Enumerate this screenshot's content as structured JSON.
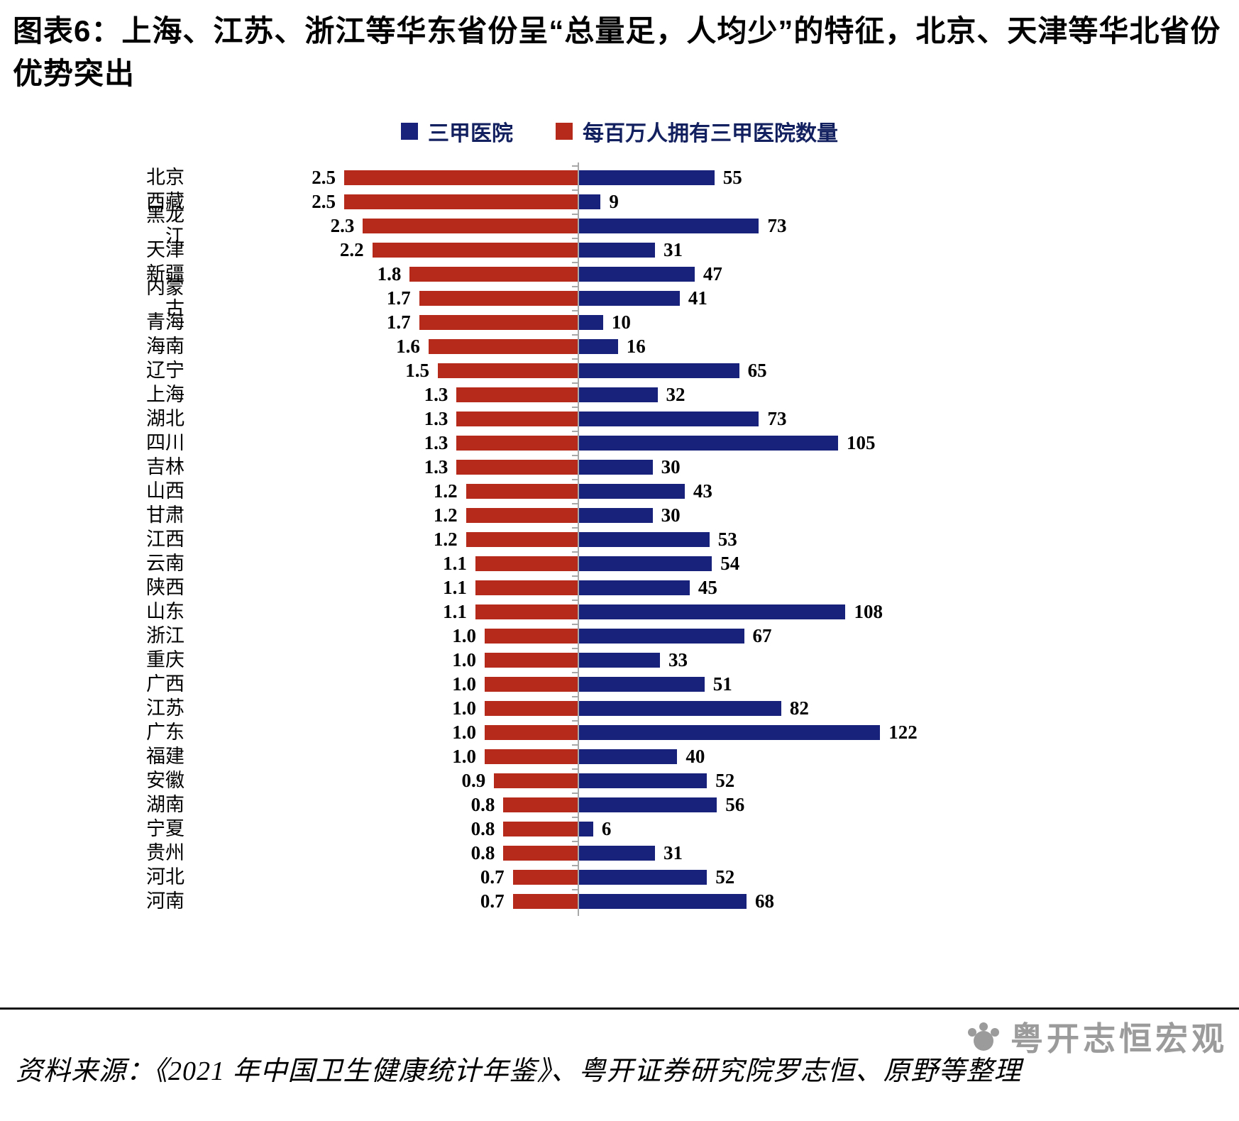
{
  "title": "图表6：上海、江苏、浙江等华东省份呈“总量足，人均少”的特征，北京、天津等华北省份优势突出",
  "legend": [
    {
      "label": "三甲医院",
      "color": "#18227A"
    },
    {
      "label": "每百万人拥有三甲医院数量",
      "color": "#B52A1B"
    }
  ],
  "source": "资料来源：《2021 年中国卫生健康统计年鉴》、粤开证券研究院罗志恒、原野等整理",
  "watermark": "粤开志恒宏观",
  "chart_data": {
    "type": "bar",
    "orientation": "diverging-horizontal",
    "title": "图表6：上海、江苏、浙江等华东省份呈“总量足，人均少”的特征，北京、天津等华北省份优势突出",
    "grid": false,
    "legend_position": "top",
    "value_labels": true,
    "categories": [
      "北京",
      "西藏",
      "黑龙江",
      "天津",
      "新疆",
      "内蒙古",
      "青海",
      "海南",
      "辽宁",
      "上海",
      "湖北",
      "四川",
      "吉林",
      "山西",
      "甘肃",
      "江西",
      "云南",
      "陕西",
      "山东",
      "浙江",
      "重庆",
      "广西",
      "江苏",
      "广东",
      "福建",
      "安徽",
      "湖南",
      "宁夏",
      "贵州",
      "河北",
      "河南"
    ],
    "series": [
      {
        "name": "三甲医院",
        "side": "right",
        "color": "#18227A",
        "axis_max": 140,
        "values": [
          55,
          9,
          73,
          31,
          47,
          41,
          10,
          16,
          65,
          32,
          73,
          105,
          30,
          43,
          30,
          53,
          54,
          45,
          108,
          67,
          33,
          51,
          82,
          122,
          40,
          52,
          56,
          6,
          31,
          52,
          68
        ]
      },
      {
        "name": "每百万人拥有三甲医院数量",
        "side": "left",
        "color": "#B52A1B",
        "axis_max": 3.0,
        "values": [
          2.5,
          2.5,
          2.3,
          2.2,
          1.8,
          1.7,
          1.7,
          1.6,
          1.5,
          1.3,
          1.3,
          1.3,
          1.3,
          1.2,
          1.2,
          1.2,
          1.1,
          1.1,
          1.1,
          1.0,
          1.0,
          1.0,
          1.0,
          1.0,
          1.0,
          0.9,
          0.8,
          0.8,
          0.8,
          0.7,
          0.7
        ]
      }
    ]
  }
}
